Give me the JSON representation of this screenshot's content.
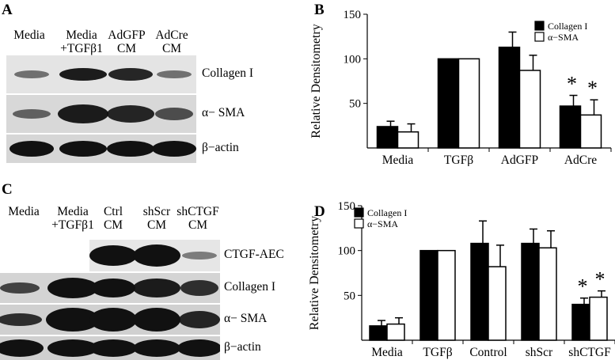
{
  "panels": {
    "A": {
      "letter": "A",
      "lanes": [
        {
          "line1": "Media",
          "line2": ""
        },
        {
          "line1": "Media",
          "line2": "+TGFβ1"
        },
        {
          "line1": "AdGFP",
          "line2": "CM"
        },
        {
          "line1": "AdCre",
          "line2": "CM"
        }
      ],
      "rows": [
        "Collagen I",
        "α− SMA",
        "β−actin"
      ]
    },
    "C": {
      "letter": "C",
      "lanes": [
        {
          "line1": "Media",
          "line2": ""
        },
        {
          "line1": "Media",
          "line2": "+TGFβ1"
        },
        {
          "line1": "Ctrl",
          "line2": "CM"
        },
        {
          "line1": "shScr",
          "line2": "CM"
        },
        {
          "line1": "shCTGF",
          "line2": "CM"
        }
      ],
      "rows": [
        "CTGF-AEC",
        "Collagen I",
        "α− SMA",
        "β−actin"
      ]
    },
    "B": {
      "letter": "B"
    },
    "D": {
      "letter": "D"
    }
  },
  "chart_data": [
    {
      "panel": "B",
      "type": "bar",
      "categories": [
        "Media",
        "TGFβ",
        "AdGFP",
        "AdCre"
      ],
      "ylabel": "Relative Densitometry",
      "ylim": [
        0,
        150
      ],
      "yticks": [
        "50",
        "100",
        "150"
      ],
      "legend_position": "top-right",
      "series": [
        {
          "name": "Collagen I",
          "fill": "#000000",
          "values": [
            24,
            100,
            113,
            47
          ],
          "errors": [
            6,
            0,
            17,
            12
          ]
        },
        {
          "name": "α−SMA",
          "fill": "#ffffff",
          "values": [
            18,
            100,
            87,
            37
          ],
          "errors": [
            9,
            0,
            17,
            17
          ]
        }
      ],
      "significance": [
        "",
        "",
        "",
        "*"
      ]
    },
    {
      "panel": "D",
      "type": "bar",
      "categories": [
        "Media",
        "TGFβ",
        "Control",
        "shScr",
        "shCTGF"
      ],
      "ylabel": "Relative Densitometry",
      "ylim": [
        0,
        150
      ],
      "yticks": [
        "50",
        "100",
        "150"
      ],
      "legend_position": "top-left",
      "series": [
        {
          "name": "Collagen I",
          "fill": "#000000",
          "values": [
            16,
            100,
            108,
            108,
            40
          ],
          "errors": [
            6,
            0,
            25,
            16,
            7
          ]
        },
        {
          "name": "α−SMA",
          "fill": "#ffffff",
          "values": [
            18,
            100,
            82,
            103,
            48
          ],
          "errors": [
            7,
            0,
            24,
            19,
            7
          ]
        }
      ],
      "significance": [
        "",
        "",
        "",
        "",
        "*"
      ]
    }
  ]
}
